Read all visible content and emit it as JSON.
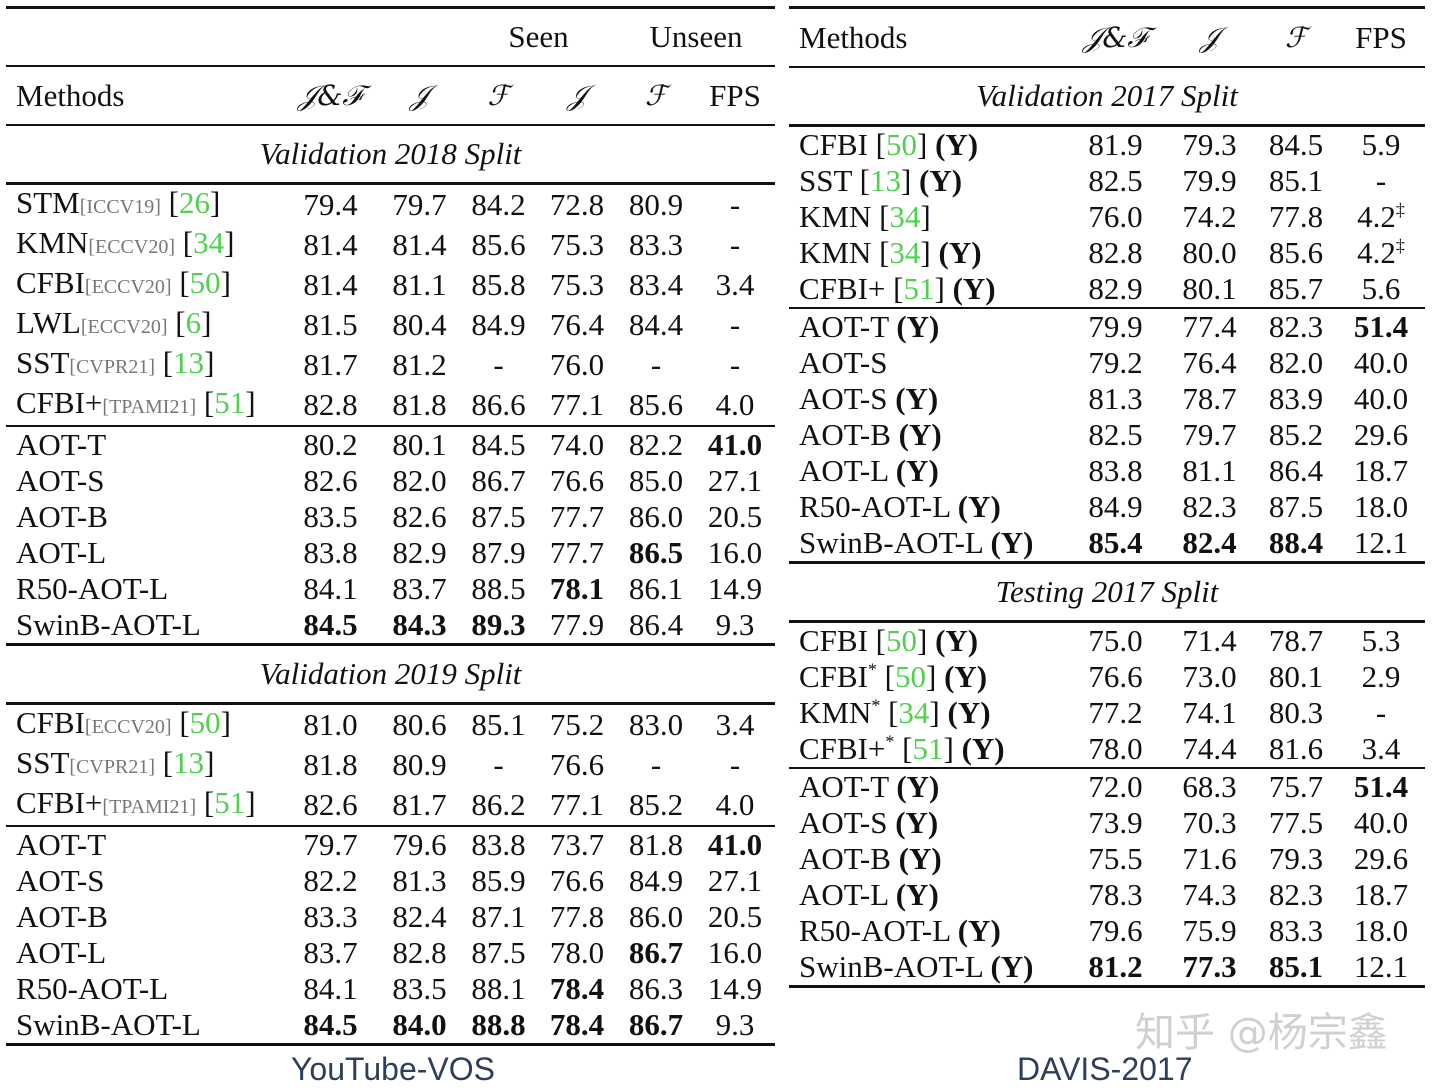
{
  "youtube": {
    "caption": "YouTube-VOS",
    "header": {
      "seen": "Seen",
      "unseen": "Unseen",
      "cols": [
        "Methods",
        "𝒥&ℱ",
        "𝒥",
        "ℱ",
        "𝒥",
        "ℱ",
        "FPS"
      ]
    },
    "sections": [
      {
        "title": "Validation 2018 Split",
        "prior": [
          {
            "name": "STM",
            "venue": "[ICCV19]",
            "cite": "26",
            "values": [
              "79.4",
              "79.7",
              "84.2",
              "72.8",
              "80.9",
              "-"
            ]
          },
          {
            "name": "KMN",
            "venue": "[ECCV20]",
            "cite": "34",
            "values": [
              "81.4",
              "81.4",
              "85.6",
              "75.3",
              "83.3",
              "-"
            ]
          },
          {
            "name": "CFBI",
            "venue": "[ECCV20]",
            "cite": "50",
            "values": [
              "81.4",
              "81.1",
              "85.8",
              "75.3",
              "83.4",
              "3.4"
            ]
          },
          {
            "name": "LWL",
            "venue": "[ECCV20]",
            "cite": "6",
            "values": [
              "81.5",
              "80.4",
              "84.9",
              "76.4",
              "84.4",
              "-"
            ]
          },
          {
            "name": "SST",
            "venue": "[CVPR21]",
            "cite": "13",
            "values": [
              "81.7",
              "81.2",
              "-",
              "76.0",
              "-",
              "-"
            ]
          },
          {
            "name": "CFBI+",
            "venue": "[TPAMI21]",
            "cite": "51",
            "values": [
              "82.8",
              "81.8",
              "86.6",
              "77.1",
              "85.6",
              "4.0"
            ]
          }
        ],
        "ours": [
          {
            "name": "AOT-T",
            "values": [
              "80.2",
              "80.1",
              "84.5",
              "74.0",
              "82.2",
              "41.0"
            ],
            "bold": [
              5
            ]
          },
          {
            "name": "AOT-S",
            "values": [
              "82.6",
              "82.0",
              "86.7",
              "76.6",
              "85.0",
              "27.1"
            ],
            "bold": []
          },
          {
            "name": "AOT-B",
            "values": [
              "83.5",
              "82.6",
              "87.5",
              "77.7",
              "86.0",
              "20.5"
            ],
            "bold": []
          },
          {
            "name": "AOT-L",
            "values": [
              "83.8",
              "82.9",
              "87.9",
              "77.7",
              "86.5",
              "16.0"
            ],
            "bold": [
              4
            ]
          },
          {
            "name": "R50-AOT-L",
            "values": [
              "84.1",
              "83.7",
              "88.5",
              "78.1",
              "86.1",
              "14.9"
            ],
            "bold": [
              3
            ]
          },
          {
            "name": "SwinB-AOT-L",
            "values": [
              "84.5",
              "84.3",
              "89.3",
              "77.9",
              "86.4",
              "9.3"
            ],
            "bold": [
              0,
              1,
              2
            ]
          }
        ]
      },
      {
        "title": "Validation 2019 Split",
        "prior": [
          {
            "name": "CFBI",
            "venue": "[ECCV20]",
            "cite": "50",
            "values": [
              "81.0",
              "80.6",
              "85.1",
              "75.2",
              "83.0",
              "3.4"
            ]
          },
          {
            "name": "SST",
            "venue": "[CVPR21]",
            "cite": "13",
            "values": [
              "81.8",
              "80.9",
              "-",
              "76.6",
              "-",
              "-"
            ]
          },
          {
            "name": "CFBI+",
            "venue": "[TPAMI21]",
            "cite": "51",
            "values": [
              "82.6",
              "81.7",
              "86.2",
              "77.1",
              "85.2",
              "4.0"
            ]
          }
        ],
        "ours": [
          {
            "name": "AOT-T",
            "values": [
              "79.7",
              "79.6",
              "83.8",
              "73.7",
              "81.8",
              "41.0"
            ],
            "bold": [
              5
            ]
          },
          {
            "name": "AOT-S",
            "values": [
              "82.2",
              "81.3",
              "85.9",
              "76.6",
              "84.9",
              "27.1"
            ],
            "bold": []
          },
          {
            "name": "AOT-B",
            "values": [
              "83.3",
              "82.4",
              "87.1",
              "77.8",
              "86.0",
              "20.5"
            ],
            "bold": []
          },
          {
            "name": "AOT-L",
            "values": [
              "83.7",
              "82.8",
              "87.5",
              "78.0",
              "86.7",
              "16.0"
            ],
            "bold": [
              4
            ]
          },
          {
            "name": "R50-AOT-L",
            "values": [
              "84.1",
              "83.5",
              "88.1",
              "78.4",
              "86.3",
              "14.9"
            ],
            "bold": [
              3
            ]
          },
          {
            "name": "SwinB-AOT-L",
            "values": [
              "84.5",
              "84.0",
              "88.8",
              "78.4",
              "86.7",
              "9.3"
            ],
            "bold": [
              0,
              1,
              2,
              3,
              4
            ]
          }
        ]
      }
    ]
  },
  "davis": {
    "caption": "DAVIS-2017",
    "header": {
      "cols": [
        "Methods",
        "𝒥&ℱ",
        "𝒥",
        "ℱ",
        "FPS"
      ]
    },
    "sections": [
      {
        "title": "Validation 2017 Split",
        "prior": [
          {
            "name": "CFBI",
            "star": "",
            "cite": "50",
            "y": "(Y)",
            "values": [
              "81.9",
              "79.3",
              "84.5",
              "5.9"
            ],
            "dagger": ""
          },
          {
            "name": "SST",
            "star": "",
            "cite": "13",
            "y": "(Y)",
            "values": [
              "82.5",
              "79.9",
              "85.1",
              "-"
            ],
            "dagger": ""
          },
          {
            "name": "KMN",
            "star": "",
            "cite": "34",
            "y": "",
            "values": [
              "76.0",
              "74.2",
              "77.8",
              "4.2"
            ],
            "dagger": "‡"
          },
          {
            "name": "KMN",
            "star": "",
            "cite": "34",
            "y": "(Y)",
            "values": [
              "82.8",
              "80.0",
              "85.6",
              "4.2"
            ],
            "dagger": "‡"
          },
          {
            "name": "CFBI+",
            "star": "",
            "cite": "51",
            "y": "(Y)",
            "values": [
              "82.9",
              "80.1",
              "85.7",
              "5.6"
            ],
            "dagger": ""
          }
        ],
        "ours": [
          {
            "name": "AOT-T",
            "y": "(Y)",
            "values": [
              "79.9",
              "77.4",
              "82.3",
              "51.4"
            ],
            "bold": [
              3
            ]
          },
          {
            "name": "AOT-S",
            "y": "",
            "values": [
              "79.2",
              "76.4",
              "82.0",
              "40.0"
            ],
            "bold": []
          },
          {
            "name": "AOT-S",
            "y": "(Y)",
            "values": [
              "81.3",
              "78.7",
              "83.9",
              "40.0"
            ],
            "bold": []
          },
          {
            "name": "AOT-B",
            "y": "(Y)",
            "values": [
              "82.5",
              "79.7",
              "85.2",
              "29.6"
            ],
            "bold": []
          },
          {
            "name": "AOT-L",
            "y": "(Y)",
            "values": [
              "83.8",
              "81.1",
              "86.4",
              "18.7"
            ],
            "bold": []
          },
          {
            "name": "R50-AOT-L",
            "y": "(Y)",
            "values": [
              "84.9",
              "82.3",
              "87.5",
              "18.0"
            ],
            "bold": []
          },
          {
            "name": "SwinB-AOT-L",
            "y": "(Y)",
            "values": [
              "85.4",
              "82.4",
              "88.4",
              "12.1"
            ],
            "bold": [
              0,
              1,
              2
            ]
          }
        ]
      },
      {
        "title": "Testing 2017 Split",
        "prior": [
          {
            "name": "CFBI",
            "star": "",
            "cite": "50",
            "y": "(Y)",
            "values": [
              "75.0",
              "71.4",
              "78.7",
              "5.3"
            ],
            "dagger": ""
          },
          {
            "name": "CFBI",
            "star": "*",
            "cite": "50",
            "y": "(Y)",
            "values": [
              "76.6",
              "73.0",
              "80.1",
              "2.9"
            ],
            "dagger": ""
          },
          {
            "name": "KMN",
            "star": "*",
            "cite": "34",
            "y": "(Y)",
            "values": [
              "77.2",
              "74.1",
              "80.3",
              "-"
            ],
            "dagger": ""
          },
          {
            "name": "CFBI+",
            "star": "*",
            "cite": "51",
            "y": "(Y)",
            "values": [
              "78.0",
              "74.4",
              "81.6",
              "3.4"
            ],
            "dagger": ""
          }
        ],
        "ours": [
          {
            "name": "AOT-T",
            "y": "(Y)",
            "values": [
              "72.0",
              "68.3",
              "75.7",
              "51.4"
            ],
            "bold": [
              3
            ]
          },
          {
            "name": "AOT-S",
            "y": "(Y)",
            "values": [
              "73.9",
              "70.3",
              "77.5",
              "40.0"
            ],
            "bold": []
          },
          {
            "name": "AOT-B",
            "y": "(Y)",
            "values": [
              "75.5",
              "71.6",
              "79.3",
              "29.6"
            ],
            "bold": []
          },
          {
            "name": "AOT-L",
            "y": "(Y)",
            "values": [
              "78.3",
              "74.3",
              "82.3",
              "18.7"
            ],
            "bold": []
          },
          {
            "name": "R50-AOT-L",
            "y": "(Y)",
            "values": [
              "79.6",
              "75.9",
              "83.3",
              "18.0"
            ],
            "bold": []
          },
          {
            "name": "SwinB-AOT-L",
            "y": "(Y)",
            "values": [
              "81.2",
              "77.3",
              "85.1",
              "12.1"
            ],
            "bold": [
              0,
              1,
              2
            ]
          }
        ]
      }
    ]
  },
  "watermark": "知乎 @杨宗鑫"
}
